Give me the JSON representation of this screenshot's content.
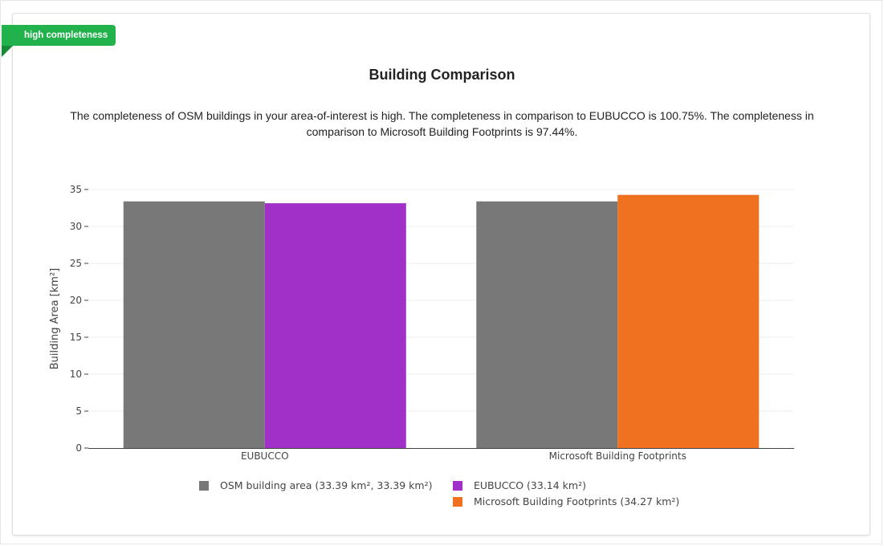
{
  "badge": {
    "label": "high completeness",
    "color": "#21b24c"
  },
  "header": {
    "title": "Building Comparison",
    "description": "The completeness of OSM buildings in your area-of-interest is high. The completeness in comparison to EUBUCCO is 100.75%. The completeness in comparison to Microsoft Building Footprints is 97.44%."
  },
  "chart_data": {
    "type": "bar",
    "categories": [
      "EUBUCCO",
      "Microsoft Building Footprints"
    ],
    "ylabel": "Building Area [km²]",
    "xlabel": "",
    "ylim": [
      0,
      35
    ],
    "yticks": [
      0,
      5,
      10,
      15,
      20,
      25,
      30,
      35
    ],
    "grid": true,
    "series": [
      {
        "name": "OSM building area (33.39 km², 33.39 km²)",
        "color": "#787878",
        "values": [
          33.39,
          33.39
        ]
      },
      {
        "name": "EUBUCCO (33.14 km²)",
        "color": "#a030c8",
        "values": [
          33.14,
          null
        ]
      },
      {
        "name": "Microsoft Building Footprints (34.27 km²)",
        "color": "#f07220",
        "values": [
          null,
          34.27
        ]
      }
    ],
    "legend_position": "bottom"
  }
}
